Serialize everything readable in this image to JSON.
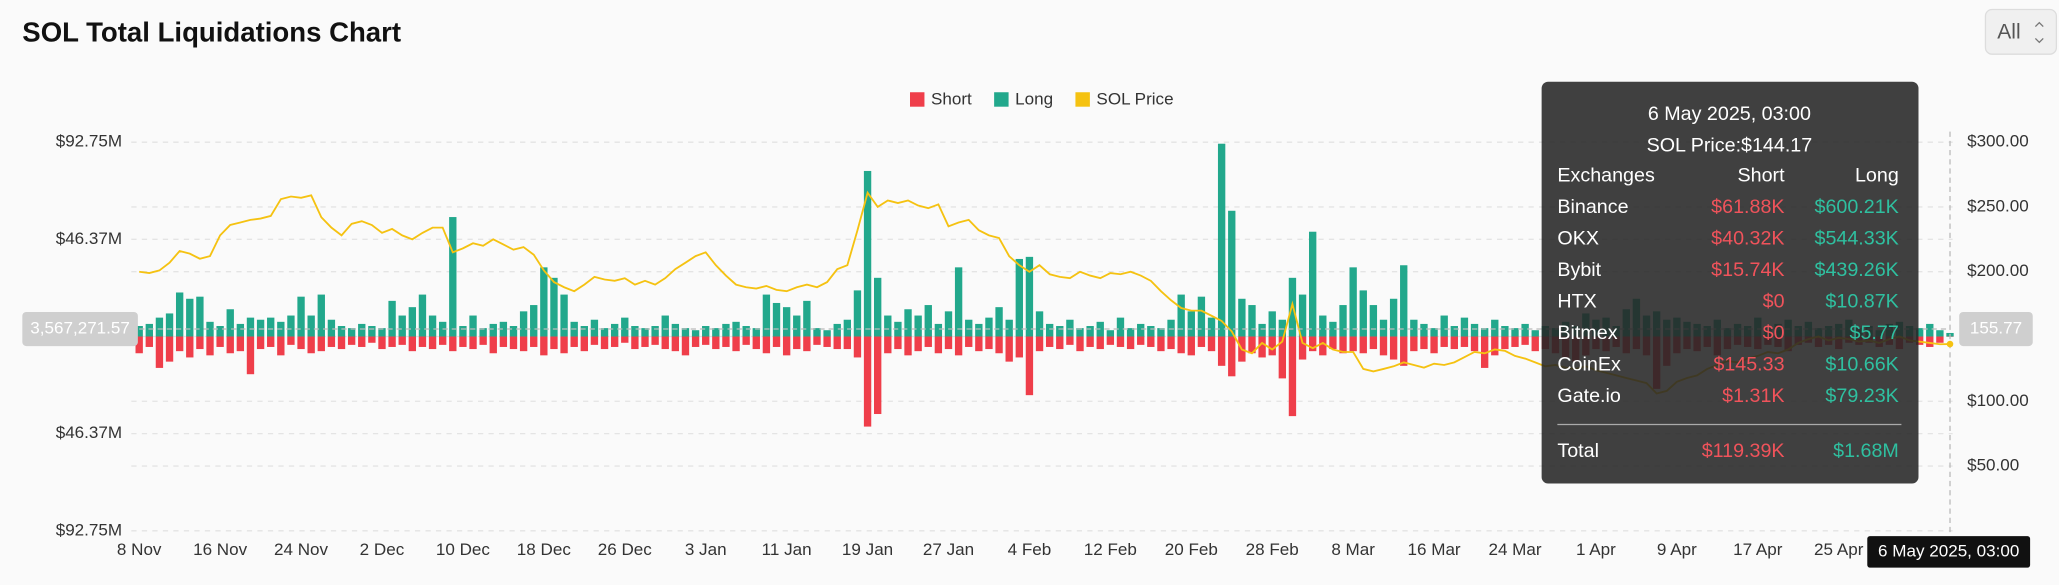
{
  "chart_data": {
    "type": "bar",
    "title": "SOL Total Liquidations Chart",
    "range_selector": "All",
    "categories": [
      "8 Nov",
      null,
      null,
      null,
      null,
      null,
      null,
      null,
      "16 Nov",
      null,
      null,
      null,
      null,
      null,
      null,
      null,
      "24 Nov",
      null,
      null,
      null,
      null,
      null,
      null,
      null,
      "2 Dec",
      null,
      null,
      null,
      null,
      null,
      null,
      null,
      "10 Dec",
      null,
      null,
      null,
      null,
      null,
      null,
      null,
      "18 Dec",
      null,
      null,
      null,
      null,
      null,
      null,
      null,
      "26 Dec",
      null,
      null,
      null,
      null,
      null,
      null,
      null,
      "3 Jan",
      null,
      null,
      null,
      null,
      null,
      null,
      null,
      "11 Jan",
      null,
      null,
      null,
      null,
      null,
      null,
      null,
      "19 Jan",
      null,
      null,
      null,
      null,
      null,
      null,
      null,
      "27 Jan",
      null,
      null,
      null,
      null,
      null,
      null,
      null,
      "4 Feb",
      null,
      null,
      null,
      null,
      null,
      null,
      null,
      "12 Feb",
      null,
      null,
      null,
      null,
      null,
      null,
      null,
      "20 Feb",
      null,
      null,
      null,
      null,
      null,
      null,
      null,
      "28 Feb",
      null,
      null,
      null,
      null,
      null,
      null,
      null,
      "8 Mar",
      null,
      null,
      null,
      null,
      null,
      null,
      null,
      "16 Mar",
      null,
      null,
      null,
      null,
      null,
      null,
      null,
      "24 Mar",
      null,
      null,
      null,
      null,
      null,
      null,
      null,
      "1 Apr",
      null,
      null,
      null,
      null,
      null,
      null,
      null,
      "9 Apr",
      null,
      null,
      null,
      null,
      null,
      null,
      null,
      "17 Apr",
      null,
      null,
      null,
      null,
      null,
      null,
      null,
      "25 Apr",
      null,
      null,
      null,
      null,
      null,
      null,
      null,
      null,
      null,
      null,
      "6 May 2025, 03:00"
    ],
    "series": [
      {
        "name": "Short",
        "color": "#ef3e4a",
        "values": [
          -8,
          -5,
          -15,
          -12,
          -7,
          -10,
          -6,
          -9,
          -5,
          -8,
          -7,
          -18,
          -6,
          -5,
          -9,
          -4,
          -6,
          -8,
          -7,
          -5,
          -6,
          -4,
          -5,
          -3,
          -6,
          -5,
          -4,
          -7,
          -5,
          -6,
          -4,
          -7,
          -5,
          -6,
          -4,
          -8,
          -5,
          -6,
          -7,
          -5,
          -9,
          -6,
          -8,
          -5,
          -7,
          -4,
          -6,
          -5,
          -3,
          -6,
          -5,
          -4,
          -6,
          -7,
          -9,
          -5,
          -4,
          -6,
          -5,
          -7,
          -4,
          -6,
          -8,
          -5,
          -9,
          -6,
          -7,
          -4,
          -5,
          -6,
          -6,
          -10,
          -43,
          -37,
          -8,
          -6,
          -9,
          -7,
          -5,
          -8,
          -6,
          -9,
          -5,
          -7,
          -6,
          -8,
          -12,
          -10,
          -28,
          -7,
          -5,
          -6,
          -4,
          -7,
          -5,
          -6,
          -4,
          -5,
          -6,
          -4,
          -5,
          -7,
          -6,
          -8,
          -9,
          -5,
          -7,
          -14,
          -19,
          -12,
          -8,
          -10,
          -9,
          -20,
          -38,
          -11,
          -7,
          -9,
          -6,
          -8,
          -7,
          -8,
          -6,
          -9,
          -11,
          -14,
          -7,
          -6,
          -8,
          -5,
          -6,
          -5,
          -7,
          -15,
          -9,
          -6,
          -5,
          -4,
          -7,
          -6,
          -8,
          -10,
          -12,
          -9,
          -6,
          -7,
          -5,
          -8,
          -6,
          -9,
          -25,
          -14,
          -8,
          -6,
          -7,
          -5,
          -9,
          -6,
          -4,
          -5,
          -6,
          -4,
          -5,
          -7,
          -4,
          -3,
          -5,
          -4,
          -6,
          -3,
          -4,
          -3,
          -5,
          -4,
          -6,
          -3,
          -4,
          -5,
          -3,
          -0.12
        ]
      },
      {
        "name": "Long",
        "color": "#22a88c",
        "values": [
          5,
          6,
          9,
          11,
          21,
          18,
          19,
          7,
          5,
          13,
          6,
          9,
          8,
          9,
          7,
          10,
          19,
          10,
          20,
          8,
          5,
          4,
          6,
          5,
          4,
          17,
          10,
          14,
          20,
          10,
          7,
          57,
          5,
          10,
          4,
          6,
          7,
          5,
          12,
          15,
          33,
          28,
          20,
          7,
          5,
          8,
          4,
          6,
          9,
          5,
          4,
          5,
          10,
          6,
          4,
          3,
          5,
          4,
          6,
          7,
          5,
          4,
          20,
          16,
          14,
          10,
          17,
          4,
          3,
          6,
          8,
          22,
          79,
          28,
          10,
          7,
          13,
          10,
          15,
          6,
          12,
          33,
          8,
          6,
          9,
          14,
          8,
          37,
          38,
          12,
          6,
          5,
          8,
          4,
          5,
          7,
          3,
          9,
          4,
          6,
          5,
          4,
          8,
          20,
          12,
          19,
          9,
          92,
          60,
          18,
          15,
          6,
          12,
          8,
          28,
          20,
          50,
          10,
          7,
          15,
          33,
          22,
          15,
          8,
          18,
          34,
          8,
          6,
          4,
          10,
          5,
          9,
          6,
          4,
          8,
          5,
          4,
          6,
          3,
          5,
          4,
          7,
          5,
          11,
          8,
          9,
          5,
          13,
          18,
          10,
          12,
          8,
          9,
          7,
          6,
          5,
          8,
          4,
          6,
          5,
          9,
          4,
          6,
          8,
          5,
          7,
          4,
          5,
          6,
          8,
          4,
          5,
          3,
          6,
          7,
          5,
          4,
          6,
          3,
          1.68
        ]
      },
      {
        "name": "SOL Price",
        "color": "#f5c211",
        "axis": "y2",
        "values": [
          200,
          199,
          201,
          207,
          216,
          214,
          210,
          212,
          228,
          236,
          238,
          240,
          241,
          243,
          256,
          258,
          257,
          259,
          242,
          234,
          228,
          237,
          239,
          236,
          230,
          233,
          228,
          225,
          230,
          234,
          234,
          215,
          218,
          222,
          220,
          225,
          221,
          217,
          219,
          213,
          201,
          192,
          188,
          185,
          190,
          196,
          194,
          193,
          195,
          190,
          193,
          190,
          195,
          202,
          207,
          212,
          215,
          205,
          197,
          190,
          188,
          187,
          189,
          186,
          185,
          188,
          190,
          188,
          192,
          202,
          205,
          232,
          261,
          250,
          255,
          253,
          255,
          251,
          249,
          252,
          235,
          238,
          240,
          232,
          228,
          226,
          212,
          205,
          200,
          205,
          198,
          196,
          195,
          200,
          197,
          195,
          199,
          198,
          200,
          197,
          193,
          185,
          178,
          172,
          170,
          170,
          166,
          162,
          154,
          140,
          137,
          145,
          140,
          146,
          175,
          145,
          141,
          145,
          140,
          138,
          138,
          125,
          123,
          125,
          127,
          130,
          128,
          126,
          129,
          128,
          130,
          134,
          138,
          137,
          140,
          139,
          135,
          133,
          130,
          127,
          128,
          126,
          125,
          127,
          124,
          122,
          120,
          118,
          116,
          114,
          106,
          108,
          115,
          118,
          120,
          125,
          128,
          131,
          130,
          133,
          135,
          138,
          137,
          140,
          145,
          148,
          150,
          147,
          149,
          148,
          146,
          147,
          145,
          148,
          150,
          147,
          146,
          145,
          144,
          144.17
        ]
      }
    ],
    "ylim": [
      -92.75,
      92.75
    ],
    "yticks": [
      {
        "value": 92.75,
        "label": "$92.75M"
      },
      {
        "value": 46.37,
        "label": "$46.37M"
      },
      {
        "value": -46.37,
        "label": "$46.37M"
      },
      {
        "value": -92.75,
        "label": "$92.75M"
      }
    ],
    "y2lim": [
      0,
      300
    ],
    "y2ticks": [
      {
        "value": 300,
        "label": "$300.00"
      },
      {
        "value": 250,
        "label": "$250.00"
      },
      {
        "value": 200,
        "label": "$200.00"
      },
      {
        "value": 150,
        "label": "$150.00"
      },
      {
        "value": 100,
        "label": "$100.00"
      },
      {
        "value": 50,
        "label": "$50.00"
      }
    ],
    "grid": true,
    "crosshair": {
      "y": {
        "value": 3.56727157,
        "label": "3,567,271.57"
      },
      "y2": 155.77
    },
    "tooltip": {
      "title": "6 May 2025, 03:00",
      "price": "SOL Price:$144.17",
      "headers": [
        "Exchanges",
        "Short",
        "Long"
      ],
      "rows": [
        [
          "Binance",
          "$61.88K",
          "$600.21K"
        ],
        [
          "OKX",
          "$40.32K",
          "$544.33K"
        ],
        [
          "Bybit",
          "$15.74K",
          "$439.26K"
        ],
        [
          "HTX",
          "$0",
          "$10.87K"
        ],
        [
          "Bitmex",
          "$0",
          "$5.77"
        ],
        [
          "CoinEx",
          "$145.33",
          "$10.66K"
        ],
        [
          "Gate.io",
          "$1.31K",
          "$79.23K"
        ]
      ],
      "total": [
        "Total",
        "$119.39K",
        "$1.68M"
      ]
    }
  }
}
